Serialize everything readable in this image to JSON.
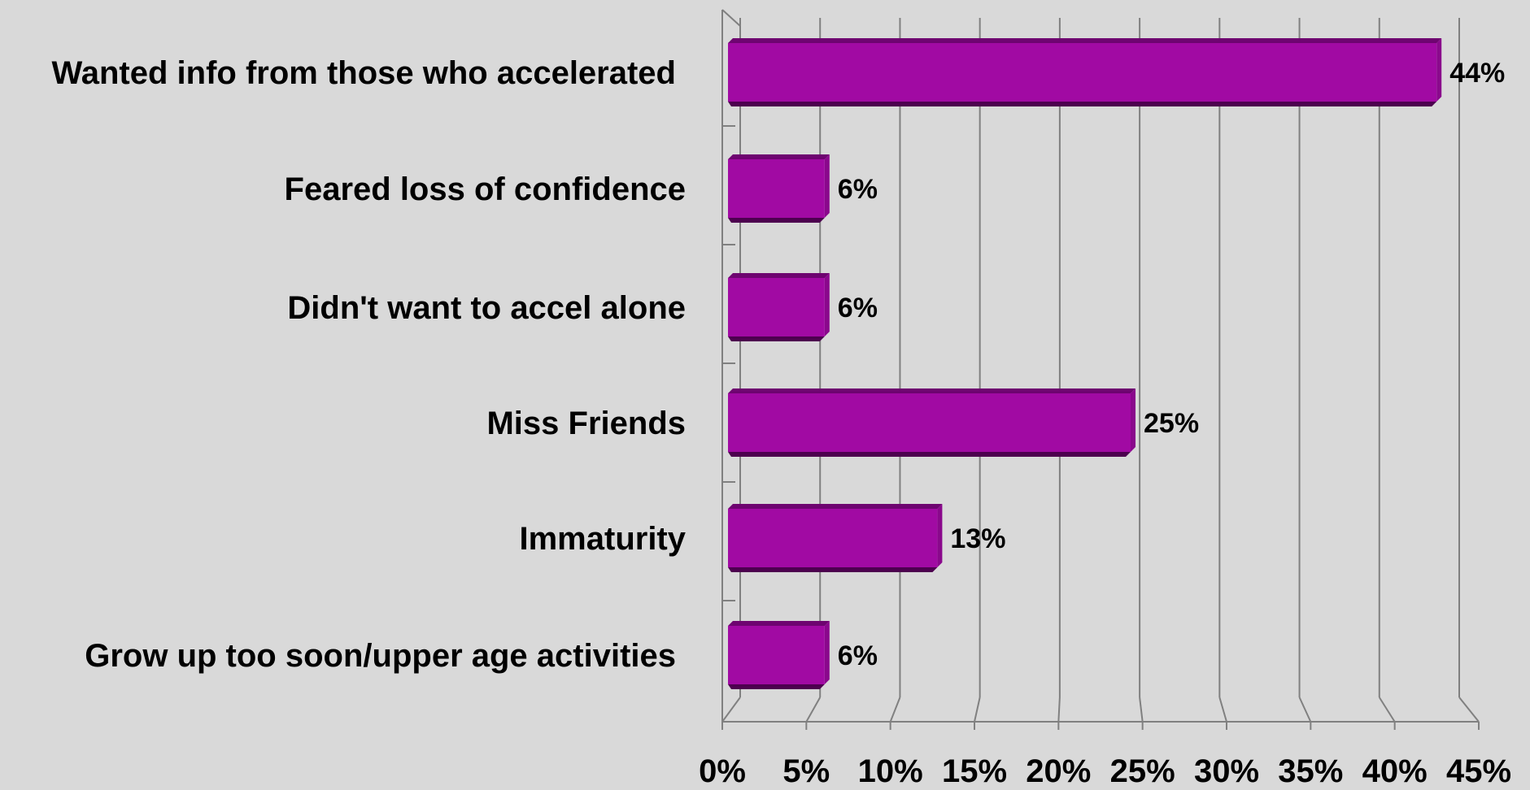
{
  "chart_data": {
    "type": "bar",
    "orientation": "horizontal",
    "style": "3d",
    "categories": [
      "Wanted info from those who accelerated",
      "Feared loss of confidence",
      "Didn't want to accel alone",
      "Miss Friends",
      "Immaturity",
      "Grow up too soon/upper age activities"
    ],
    "values": [
      44,
      6,
      6,
      25,
      13,
      6
    ],
    "value_labels": [
      "44%",
      "6%",
      "6%",
      "25%",
      "13%",
      "6%"
    ],
    "x_ticks": [
      0,
      5,
      10,
      15,
      20,
      25,
      30,
      35,
      40,
      45
    ],
    "x_tick_labels": [
      "0%",
      "5%",
      "10%",
      "15%",
      "20%",
      "25%",
      "30%",
      "35%",
      "40%",
      "45%"
    ],
    "xlim": [
      0,
      45
    ],
    "grid": "vertical",
    "legend": "none",
    "title": "",
    "xlabel": "",
    "ylabel": ""
  },
  "colors": {
    "background": "#d9d9d9",
    "bar_front": "#a10aa3",
    "bar_top": "#6e0470",
    "bar_side": "#8a088c",
    "bar_bottom": "#4d004f",
    "gridline": "#808080",
    "axis": "#808080",
    "text": "#000000"
  }
}
